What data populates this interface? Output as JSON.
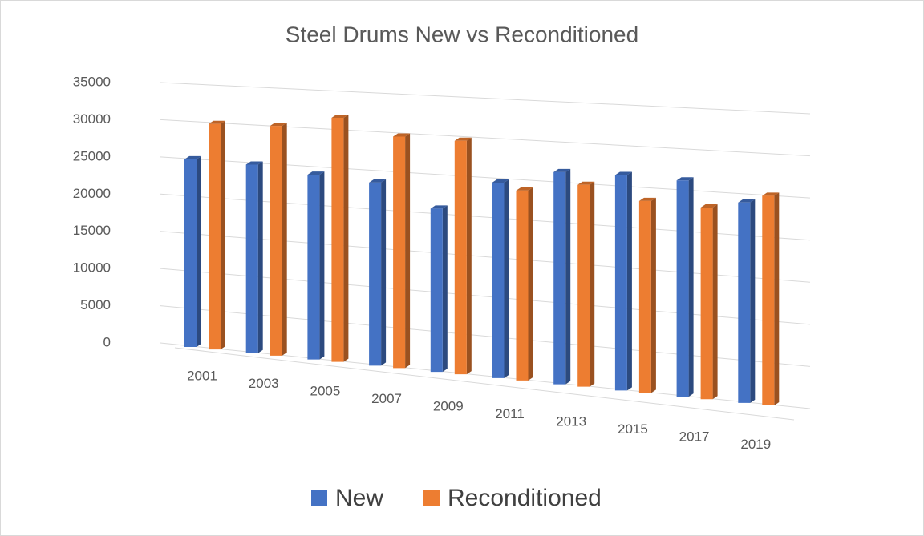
{
  "chart_data": {
    "type": "bar3d",
    "title": "Steel Drums New vs Reconditioned",
    "categories": [
      "2001",
      "2003",
      "2005",
      "2007",
      "2009",
      "2011",
      "2013",
      "2015",
      "2017",
      "2019"
    ],
    "series": [
      {
        "name": "New",
        "color": "#4472c4",
        "values": [
          25100,
          24900,
          24100,
          23600,
          20800,
          24600,
          26400,
          26500,
          26300,
          24100
        ]
      },
      {
        "name": "Reconditioned",
        "color": "#ed7d31",
        "values": [
          30000,
          30200,
          31700,
          29700,
          29600,
          23800,
          25000,
          23500,
          23200,
          25100
        ]
      }
    ],
    "ylim": [
      0,
      35000
    ],
    "yticks": [
      0,
      5000,
      10000,
      15000,
      20000,
      25000,
      30000,
      35000
    ],
    "grid": true
  }
}
